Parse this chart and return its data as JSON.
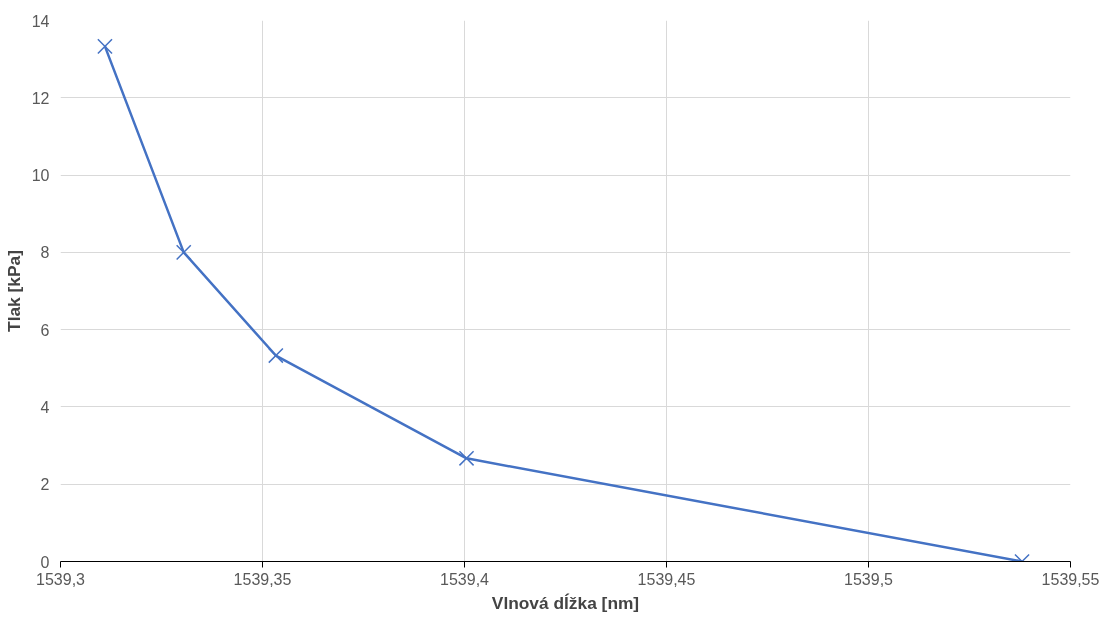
{
  "chart_data": {
    "type": "line",
    "xlabel": "Vlnová dĺžka [nm]",
    "ylabel": "Tlak [kPa]",
    "x": [
      1539.311,
      1539.3305,
      1539.3533,
      1539.4005,
      1539.538
    ],
    "series": [
      {
        "color": "#4472c4",
        "values": [
          13.33,
          8,
          5.33,
          2.67,
          0
        ]
      }
    ],
    "xlim": [
      1539.3,
      1539.55
    ],
    "xticks": [
      {
        "value": 1539.3,
        "label": "1539,3"
      },
      {
        "value": 1539.35,
        "label": "1539,35"
      },
      {
        "value": 1539.4,
        "label": "1539,4"
      },
      {
        "value": 1539.45,
        "label": "1539,45"
      },
      {
        "value": 1539.5,
        "label": "1539,5"
      },
      {
        "value": 1539.55,
        "label": "1539,55"
      }
    ],
    "ylim": [
      0,
      14
    ],
    "yticks": [
      0,
      2,
      4,
      6,
      8,
      10,
      12,
      14
    ],
    "grid": true,
    "marker": "cross",
    "line_style": "solid"
  }
}
